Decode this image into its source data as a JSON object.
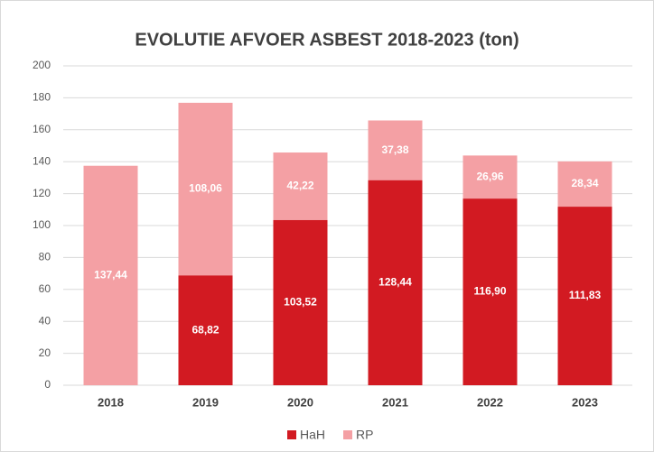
{
  "chart_data": {
    "type": "stacked_bar",
    "title": "EVOLUTIE AFVOER ASBEST  2018-2023 (ton)",
    "categories": [
      "2018",
      "2019",
      "2020",
      "2021",
      "2022",
      "2023"
    ],
    "series": [
      {
        "name": "HaH",
        "color": "#d21a22",
        "values": [
          null,
          68.82,
          103.52,
          128.44,
          116.9,
          111.83
        ],
        "value_labels": [
          null,
          "68,82",
          "103,52",
          "128,44",
          "116,90",
          "111,83"
        ]
      },
      {
        "name": "RP",
        "color": "#f4a0a4",
        "values": [
          137.44,
          108.06,
          42.22,
          37.38,
          26.96,
          28.34
        ],
        "value_labels": [
          "137,44",
          "108,06",
          "42,22",
          "37,38",
          "26,96",
          "28,34"
        ]
      }
    ],
    "ylim": [
      0,
      200
    ],
    "yticks": [
      0,
      20,
      40,
      60,
      80,
      100,
      120,
      140,
      160,
      180,
      200
    ],
    "grid": true,
    "legend": "bottom"
  }
}
